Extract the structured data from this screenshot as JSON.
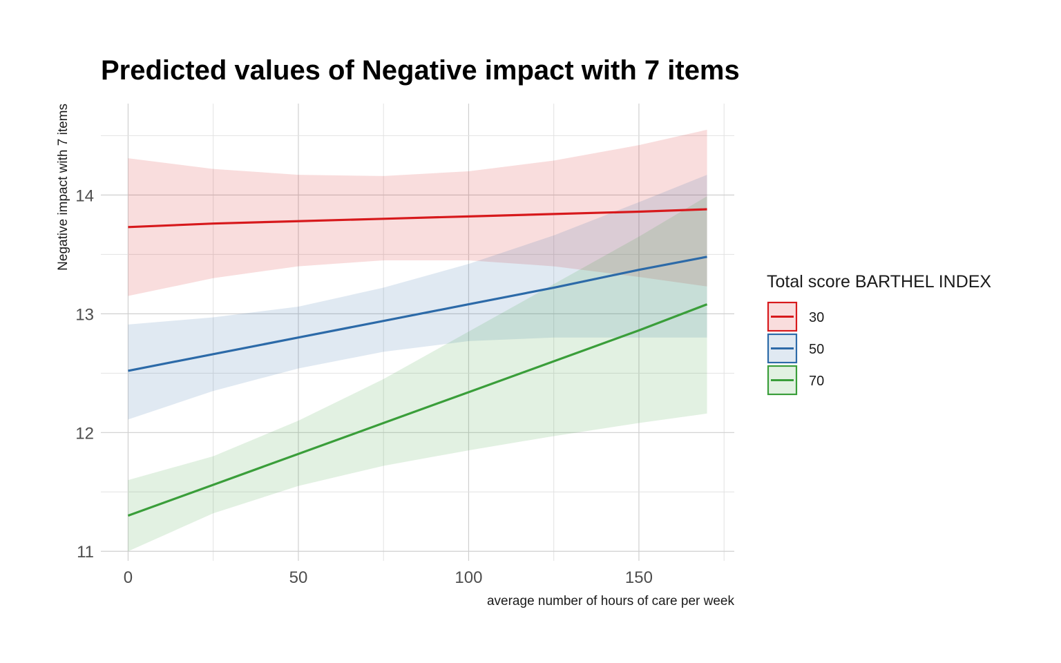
{
  "chart_data": {
    "type": "line",
    "title": "Predicted values of Negative impact with 7 items",
    "xlabel": "average number of hours of care per week",
    "ylabel": "Negative impact with 7 items",
    "xlim": [
      -8,
      178
    ],
    "ylim": [
      10.92,
      14.77
    ],
    "x_ticks": [
      0,
      50,
      100,
      150
    ],
    "y_ticks": [
      11,
      12,
      13,
      14
    ],
    "grid": true,
    "legend_position": "right",
    "legend_title": "Total score BARTHEL INDEX",
    "x": [
      0,
      25,
      50,
      75,
      100,
      125,
      150,
      170
    ],
    "series": [
      {
        "name": "30",
        "color": "#d7191c",
        "values": [
          13.73,
          13.76,
          13.78,
          13.8,
          13.82,
          13.84,
          13.86,
          13.88
        ],
        "lower": [
          13.15,
          13.3,
          13.4,
          13.45,
          13.45,
          13.4,
          13.31,
          13.23
        ],
        "upper": [
          14.31,
          14.22,
          14.17,
          14.16,
          14.2,
          14.29,
          14.42,
          14.55
        ]
      },
      {
        "name": "50",
        "color": "#2c6aa8",
        "values": [
          12.52,
          12.66,
          12.8,
          12.94,
          13.08,
          13.22,
          13.37,
          13.48
        ],
        "lower": [
          12.11,
          12.35,
          12.54,
          12.68,
          12.77,
          12.8,
          12.8,
          12.8
        ],
        "upper": [
          12.91,
          12.97,
          13.06,
          13.22,
          13.42,
          13.66,
          13.94,
          14.17
        ]
      },
      {
        "name": "70",
        "color": "#3a9e3a",
        "values": [
          11.3,
          11.56,
          11.82,
          12.08,
          12.34,
          12.6,
          12.86,
          13.08
        ],
        "lower": [
          11.0,
          11.32,
          11.55,
          11.72,
          11.85,
          11.97,
          12.08,
          12.16
        ],
        "upper": [
          11.6,
          11.8,
          12.1,
          12.45,
          12.85,
          13.25,
          13.65,
          13.99
        ]
      }
    ]
  }
}
